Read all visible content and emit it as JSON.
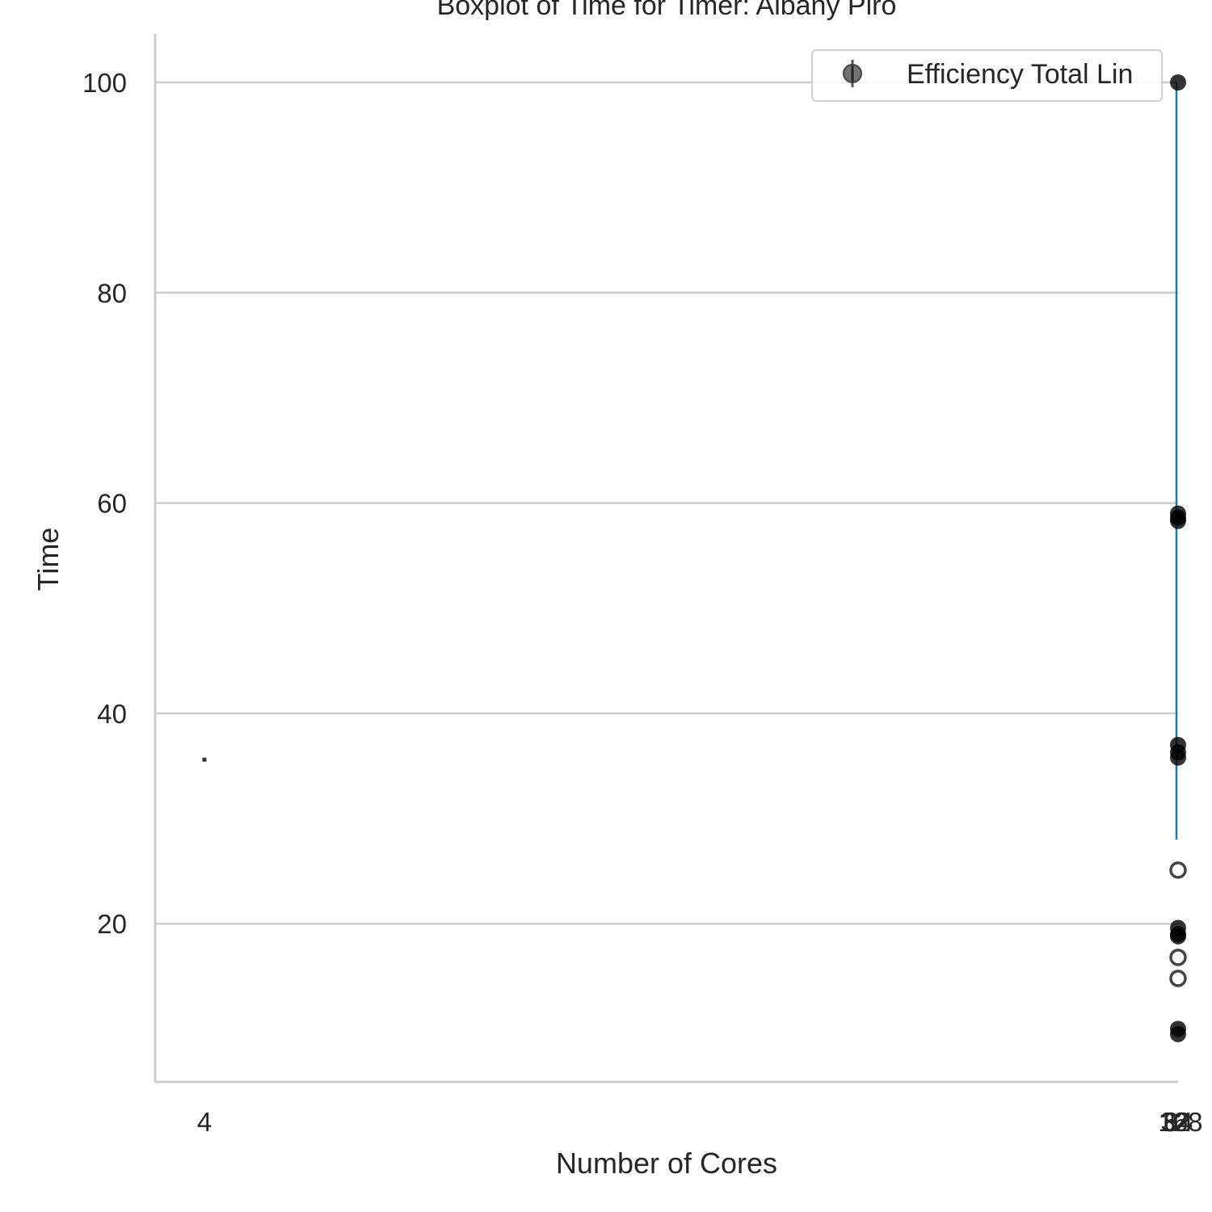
{
  "chart_data": {
    "type": "scatter",
    "title": "Boxplot of Time for Timer: Albany Piro",
    "xlabel": "Number of Cores",
    "ylabel": "Time",
    "x_ticks": [
      "4",
      "8",
      "16",
      "32",
      "64",
      "128"
    ],
    "y_ticks": [
      20,
      40,
      60,
      80,
      100
    ],
    "ylim": [
      5,
      105
    ],
    "grid": "horizontal",
    "legend": {
      "placement": "top-right",
      "entries": [
        "Efficiency Total Lin"
      ]
    },
    "colors": {
      "line": "#1f77b4",
      "points": "#000000",
      "grid": "#cccccc",
      "axis": "#cccccc"
    },
    "series": [
      {
        "name": "Efficiency Total Lin",
        "points": [
          {
            "x": "4",
            "y": 35.6,
            "style": "dot"
          },
          {
            "x": "64",
            "y": 100,
            "style": "filled"
          },
          {
            "x": "64",
            "y": 59.0,
            "style": "filled"
          },
          {
            "x": "64",
            "y": 58.6,
            "style": "filled"
          },
          {
            "x": "64",
            "y": 58.3,
            "style": "filled"
          },
          {
            "x": "64",
            "y": 37.0,
            "style": "filled"
          },
          {
            "x": "64",
            "y": 36.3,
            "style": "filled"
          },
          {
            "x": "64",
            "y": 35.8,
            "style": "filled"
          },
          {
            "x": "64",
            "y": 25.1,
            "style": "hollow"
          },
          {
            "x": "64",
            "y": 19.6,
            "style": "filled"
          },
          {
            "x": "64",
            "y": 19.0,
            "style": "filled"
          },
          {
            "x": "64",
            "y": 18.8,
            "style": "filled"
          },
          {
            "x": "64",
            "y": 16.8,
            "style": "hollow"
          },
          {
            "x": "64",
            "y": 14.8,
            "style": "hollow"
          },
          {
            "x": "64",
            "y": 10.0,
            "style": "filled"
          },
          {
            "x": "64",
            "y": 9.5,
            "style": "filled"
          }
        ],
        "line": [
          {
            "x": "64",
            "y": 100
          },
          {
            "x": "64",
            "y": 28
          }
        ]
      }
    ]
  }
}
